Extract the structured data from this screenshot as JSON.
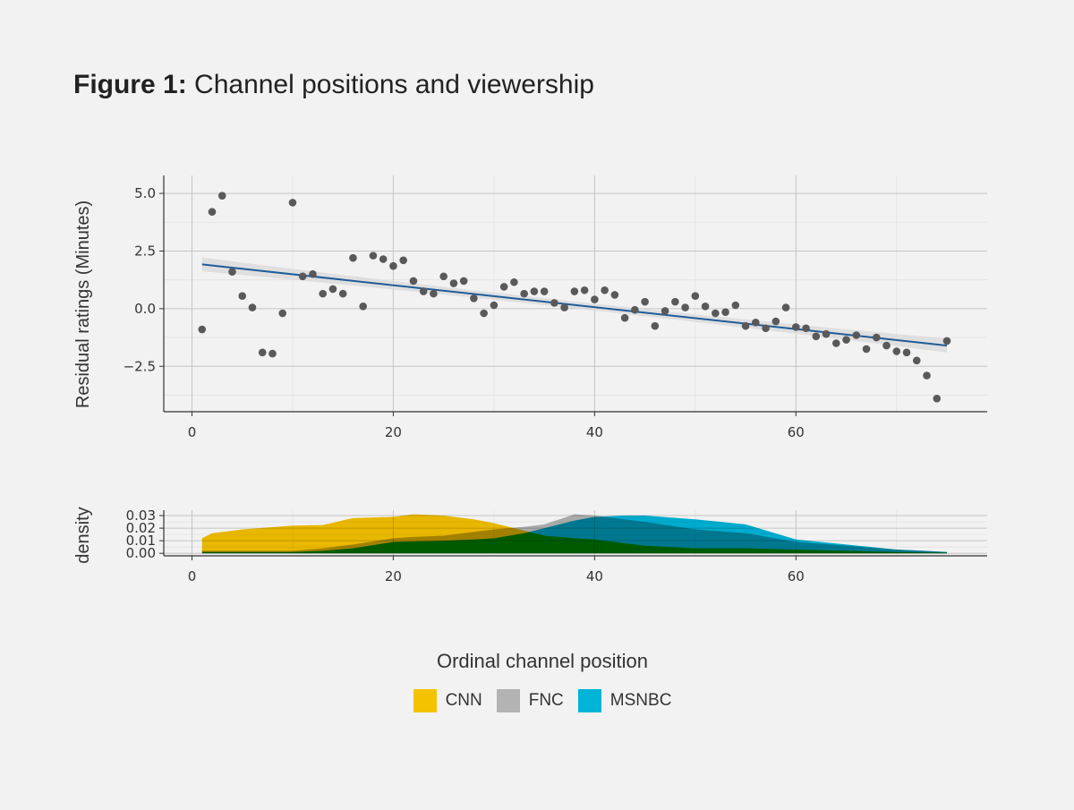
{
  "title": {
    "prefix": "Figure 1:",
    "text": "Channel positions and viewership"
  },
  "chart_data": [
    {
      "type": "scatter",
      "ylabel": "Residual ratings (Minutes)",
      "xlabel": "Ordinal channel position",
      "xlim": [
        -2.8,
        79
      ],
      "ylim": [
        -4.47,
        5.78
      ],
      "xticks": [
        0,
        20,
        40,
        60
      ],
      "yticks": [
        5.0,
        2.5,
        0.0,
        -2.5
      ],
      "ytick_labels": [
        "5.0",
        "2.5",
        "0.0",
        "−2.5"
      ],
      "grid": true,
      "point_color": "#595959",
      "x": [
        1,
        2,
        3,
        4,
        5,
        6,
        7,
        8,
        9,
        10,
        11,
        12,
        13,
        14,
        15,
        16,
        17,
        18,
        19,
        20,
        21,
        22,
        23,
        24,
        25,
        26,
        27,
        28,
        29,
        30,
        31,
        32,
        33,
        34,
        35,
        36,
        37,
        38,
        39,
        40,
        41,
        42,
        43,
        44,
        45,
        46,
        47,
        48,
        49,
        50,
        51,
        52,
        53,
        54,
        55,
        56,
        57,
        58,
        59,
        60,
        61,
        62,
        63,
        64,
        65,
        66,
        67,
        68,
        69,
        70,
        71,
        72,
        73,
        74,
        75
      ],
      "y": [
        -0.9,
        4.2,
        4.9,
        1.6,
        0.55,
        0.05,
        -1.9,
        -1.95,
        -0.2,
        4.6,
        1.4,
        1.5,
        0.65,
        0.85,
        0.65,
        2.2,
        0.1,
        2.3,
        2.15,
        1.85,
        2.1,
        1.2,
        0.75,
        0.65,
        1.4,
        1.1,
        1.2,
        0.45,
        -0.2,
        0.15,
        0.95,
        1.15,
        0.65,
        0.75,
        0.75,
        0.25,
        0.05,
        0.75,
        0.8,
        0.4,
        0.8,
        0.6,
        -0.4,
        -0.05,
        0.3,
        -0.75,
        -0.1,
        0.3,
        0.05,
        0.55,
        0.1,
        -0.2,
        -0.15,
        0.15,
        -0.75,
        -0.6,
        -0.85,
        -0.55,
        0.05,
        -0.8,
        -0.85,
        -1.2,
        -1.1,
        -1.5,
        -1.35,
        -1.15,
        -1.75,
        -1.25,
        -1.6,
        -1.85,
        -1.9,
        -2.25,
        -2.9,
        -3.9,
        -1.4
      ],
      "fit": {
        "x": [
          1,
          75
        ],
        "y": [
          1.92,
          -1.6
        ],
        "ci_halfwidth_ends": 0.3,
        "ci_halfwidth_mid": 0.15,
        "line_color": "#1f5c99",
        "band_color": "#d9d9d9"
      }
    },
    {
      "type": "area",
      "ylabel": "density",
      "xlim": [
        -2.8,
        79
      ],
      "ylim": [
        -0.002,
        0.0343
      ],
      "xticks": [
        0,
        20,
        40,
        60
      ],
      "yticks": [
        0.0,
        0.01,
        0.02,
        0.03
      ],
      "ytick_labels": [
        "0.00",
        "0.01",
        "0.02",
        "0.03"
      ],
      "x": [
        1,
        2,
        5,
        10,
        13,
        16,
        20,
        22,
        25,
        28,
        30,
        33,
        35,
        38,
        40,
        43,
        45,
        50,
        55,
        60,
        65,
        70,
        75
      ],
      "series": [
        {
          "name": "CNN",
          "color": "#f5c200",
          "values": [
            0.012,
            0.016,
            0.019,
            0.022,
            0.0225,
            0.028,
            0.029,
            0.031,
            0.03,
            0.027,
            0.024,
            0.018,
            0.014,
            0.012,
            0.011,
            0.008,
            0.006,
            0.004,
            0.004,
            0.003,
            0.002,
            0.001,
            0.0005
          ]
        },
        {
          "name": "FNC",
          "color": "#b3b3b3",
          "values": [
            0.002,
            0.002,
            0.002,
            0.002,
            0.004,
            0.007,
            0.012,
            0.013,
            0.014,
            0.017,
            0.019,
            0.021,
            0.023,
            0.031,
            0.03,
            0.027,
            0.025,
            0.019,
            0.016,
            0.009,
            0.006,
            0.003,
            0.001
          ]
        },
        {
          "name": "MSNBC",
          "color": "#00b4d8",
          "values": [
            0.001,
            0.001,
            0.001,
            0.001,
            0.002,
            0.004,
            0.009,
            0.0095,
            0.01,
            0.011,
            0.012,
            0.016,
            0.02,
            0.026,
            0.029,
            0.03,
            0.03,
            0.027,
            0.023,
            0.011,
            0.007,
            0.003,
            0.001
          ]
        }
      ]
    }
  ],
  "legend": [
    {
      "label": "CNN",
      "color": "#f5c200"
    },
    {
      "label": "FNC",
      "color": "#b3b3b3"
    },
    {
      "label": "MSNBC",
      "color": "#00b4d8"
    }
  ]
}
